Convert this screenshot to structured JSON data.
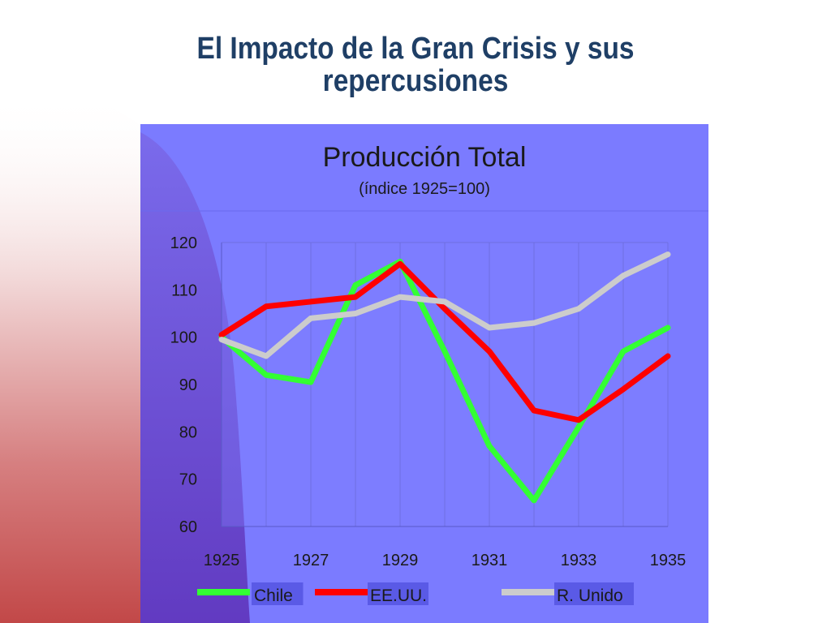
{
  "slide": {
    "title_line1": "El Impacto de la Gran Crisis y sus",
    "title_line2": "repercusiones"
  },
  "colors": {
    "panel": "#7b7bff",
    "plot_area": "#8080ff",
    "title_text": "#1f3f66",
    "chile": "#33ff33",
    "eeuu": "#ff0000",
    "runido": "#cccccc"
  },
  "chart_data": {
    "type": "line",
    "title": "Producción Total",
    "subtitle": "(índice 1925=100)",
    "x": [
      1925,
      1926,
      1927,
      1928,
      1929,
      1930,
      1931,
      1932,
      1933,
      1934,
      1935
    ],
    "xticks": [
      "1925",
      "1927",
      "1929",
      "1931",
      "1933",
      "1935"
    ],
    "yticks": [
      "120",
      "110",
      "100",
      "90",
      "80",
      "70",
      "60"
    ],
    "ylim": [
      60,
      120
    ],
    "grid": "vertical",
    "legend_position": "bottom",
    "series": [
      {
        "name": "Chile",
        "color": "#33ff33",
        "values": [
          100,
          92,
          90.5,
          111,
          116,
          97,
          77,
          65.5,
          81,
          97,
          102
        ]
      },
      {
        "name": "EE.UU.",
        "color": "#ff0000",
        "values": [
          100.5,
          106.5,
          107.5,
          108.5,
          115.5,
          106,
          97,
          84.5,
          82.5,
          89,
          96
        ]
      },
      {
        "name": "R. Unido",
        "color": "#cccccc",
        "values": [
          99.5,
          96,
          104,
          105,
          108.5,
          107.5,
          102,
          103,
          106,
          113,
          117.5
        ]
      }
    ]
  }
}
